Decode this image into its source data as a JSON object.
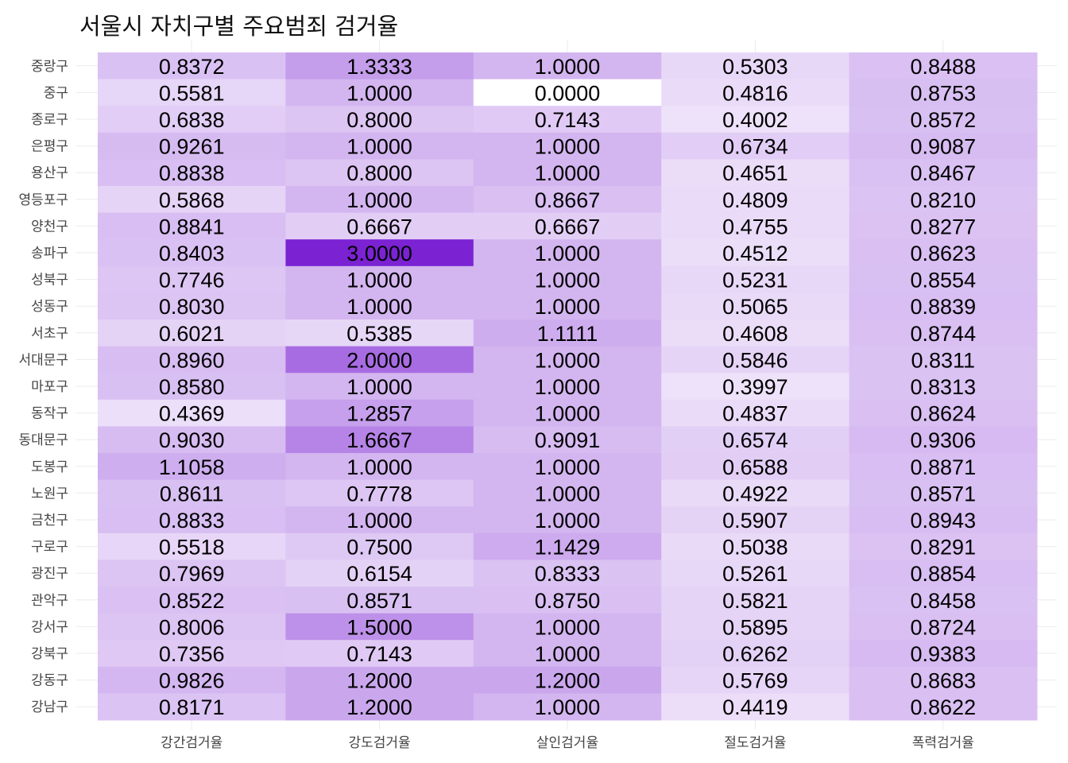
{
  "chart_data": {
    "type": "heatmap",
    "title": "서울시 자치구별 주요범죄 검거율",
    "xlabel": "",
    "ylabel": "",
    "x_categories": [
      "강간검거율",
      "강도검거율",
      "살인검거율",
      "절도검거율",
      "폭력검거율"
    ],
    "y_categories": [
      "중랑구",
      "중구",
      "종로구",
      "은평구",
      "용산구",
      "영등포구",
      "양천구",
      "송파구",
      "성북구",
      "성동구",
      "서초구",
      "서대문구",
      "마포구",
      "동작구",
      "동대문구",
      "도봉구",
      "노원구",
      "금천구",
      "구로구",
      "광진구",
      "관악구",
      "강서구",
      "강북구",
      "강동구",
      "강남구"
    ],
    "values": [
      [
        "0.8372",
        "1.3333",
        "1.0000",
        "0.5303",
        "0.8488"
      ],
      [
        "0.5581",
        "1.0000",
        "0.0000",
        "0.4816",
        "0.8753"
      ],
      [
        "0.6838",
        "0.8000",
        "0.7143",
        "0.4002",
        "0.8572"
      ],
      [
        "0.9261",
        "1.0000",
        "1.0000",
        "0.6734",
        "0.9087"
      ],
      [
        "0.8838",
        "0.8000",
        "1.0000",
        "0.4651",
        "0.8467"
      ],
      [
        "0.5868",
        "1.0000",
        "0.8667",
        "0.4809",
        "0.8210"
      ],
      [
        "0.8841",
        "0.6667",
        "0.6667",
        "0.4755",
        "0.8277"
      ],
      [
        "0.8403",
        "3.0000",
        "1.0000",
        "0.4512",
        "0.8623"
      ],
      [
        "0.7746",
        "1.0000",
        "1.0000",
        "0.5231",
        "0.8554"
      ],
      [
        "0.8030",
        "1.0000",
        "1.0000",
        "0.5065",
        "0.8839"
      ],
      [
        "0.6021",
        "0.5385",
        "1.1111",
        "0.4608",
        "0.8744"
      ],
      [
        "0.8960",
        "2.0000",
        "1.0000",
        "0.5846",
        "0.8311"
      ],
      [
        "0.8580",
        "1.0000",
        "1.0000",
        "0.3997",
        "0.8313"
      ],
      [
        "0.4369",
        "1.2857",
        "1.0000",
        "0.4837",
        "0.8624"
      ],
      [
        "0.9030",
        "1.6667",
        "0.9091",
        "0.6574",
        "0.9306"
      ],
      [
        "1.1058",
        "1.0000",
        "1.0000",
        "0.6588",
        "0.8871"
      ],
      [
        "0.8611",
        "0.7778",
        "1.0000",
        "0.4922",
        "0.8571"
      ],
      [
        "0.8833",
        "1.0000",
        "1.0000",
        "0.5907",
        "0.8943"
      ],
      [
        "0.5518",
        "0.7500",
        "1.1429",
        "0.5038",
        "0.8291"
      ],
      [
        "0.7969",
        "0.6154",
        "0.8333",
        "0.5261",
        "0.8854"
      ],
      [
        "0.8522",
        "0.8571",
        "0.8750",
        "0.5821",
        "0.8458"
      ],
      [
        "0.8006",
        "1.5000",
        "1.0000",
        "0.5895",
        "0.8724"
      ],
      [
        "0.7356",
        "0.7143",
        "1.0000",
        "0.6262",
        "0.9383"
      ],
      [
        "0.9826",
        "1.2000",
        "1.2000",
        "0.5769",
        "0.8683"
      ],
      [
        "0.8171",
        "1.2000",
        "1.0000",
        "0.4419",
        "0.8622"
      ]
    ],
    "color_scale": {
      "low": "#ffffff",
      "high": "#7b22d3",
      "min": 0,
      "max": 3
    },
    "grid": true,
    "legend": "none"
  }
}
